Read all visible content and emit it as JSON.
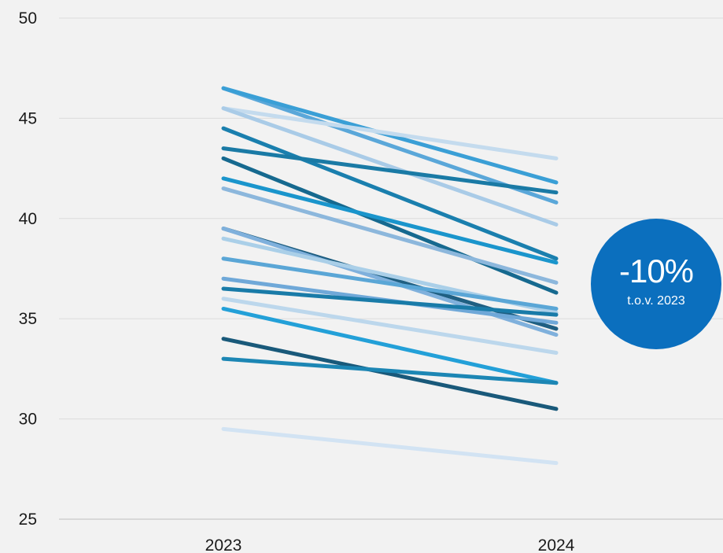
{
  "chart_data": {
    "type": "line",
    "categories": [
      "2023",
      "2024"
    ],
    "ylim": [
      25,
      50
    ],
    "yticks": [
      25,
      30,
      35,
      40,
      45,
      50
    ],
    "grid": true,
    "series": [
      {
        "values": [
          46.5,
          40.8
        ],
        "color": "#5aa7d9"
      },
      {
        "values": [
          46.5,
          41.8
        ],
        "color": "#3a9fd6"
      },
      {
        "values": [
          45.5,
          43.0
        ],
        "color": "#c4dbee"
      },
      {
        "values": [
          45.5,
          39.7
        ],
        "color": "#a9cbe7"
      },
      {
        "values": [
          44.5,
          38.0
        ],
        "color": "#1a7fae"
      },
      {
        "values": [
          43.5,
          41.3
        ],
        "color": "#1a7aa5"
      },
      {
        "values": [
          43.0,
          36.3
        ],
        "color": "#16698f"
      },
      {
        "values": [
          42.0,
          37.8
        ],
        "color": "#1a95cc"
      },
      {
        "values": [
          41.5,
          36.8
        ],
        "color": "#8cb7dc"
      },
      {
        "values": [
          39.5,
          34.5
        ],
        "color": "#1f5f82"
      },
      {
        "values": [
          39.5,
          34.2
        ],
        "color": "#7fb0dc"
      },
      {
        "values": [
          39.0,
          35.3
        ],
        "color": "#aacfe8"
      },
      {
        "values": [
          38.0,
          35.5
        ],
        "color": "#5aa6d6"
      },
      {
        "values": [
          37.0,
          34.8
        ],
        "color": "#6fa8d8"
      },
      {
        "values": [
          36.5,
          35.2
        ],
        "color": "#197ba8"
      },
      {
        "values": [
          36.0,
          33.3
        ],
        "color": "#bcd7ec"
      },
      {
        "values": [
          35.5,
          31.8
        ],
        "color": "#23a0d8"
      },
      {
        "values": [
          34.0,
          30.5
        ],
        "color": "#19597a"
      },
      {
        "values": [
          33.0,
          31.8
        ],
        "color": "#1c86b4"
      },
      {
        "values": [
          29.5,
          27.8
        ],
        "color": "#d2e3f3"
      }
    ]
  },
  "badge": {
    "value": "-10%",
    "caption": "t.o.v. 2023",
    "color": "#0b6fbe"
  }
}
